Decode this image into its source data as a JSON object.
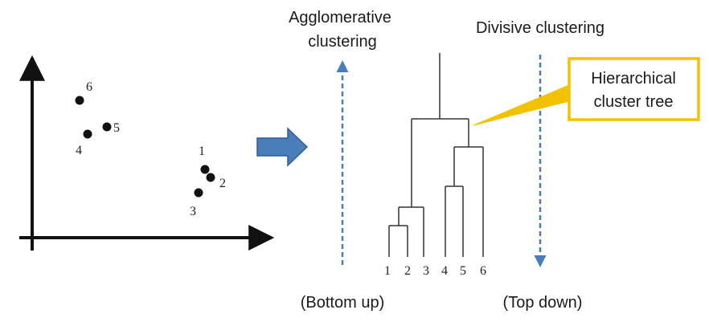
{
  "colors": {
    "ink": "#111111",
    "tree_line": "#333333",
    "dashed_arrow": "#4a7ebb",
    "big_arrow_fill": "#4a7ebb",
    "big_arrow_stroke": "#2f5f96",
    "callout_border": "#f2c200"
  },
  "left_heading": {
    "line1": "Agglomerative",
    "line2": "clustering"
  },
  "right_heading": "Divisive clustering",
  "bottom_left": "(Bottom up)",
  "bottom_right": "(Top down)",
  "callout": {
    "line1": "Hierarchical",
    "line2": "cluster tree"
  },
  "scatter_labels": [
    "6",
    "5",
    "4",
    "1",
    "2",
    "3"
  ],
  "dendrogram_leaves": [
    "1",
    "2",
    "3",
    "4",
    "5",
    "6"
  ]
}
